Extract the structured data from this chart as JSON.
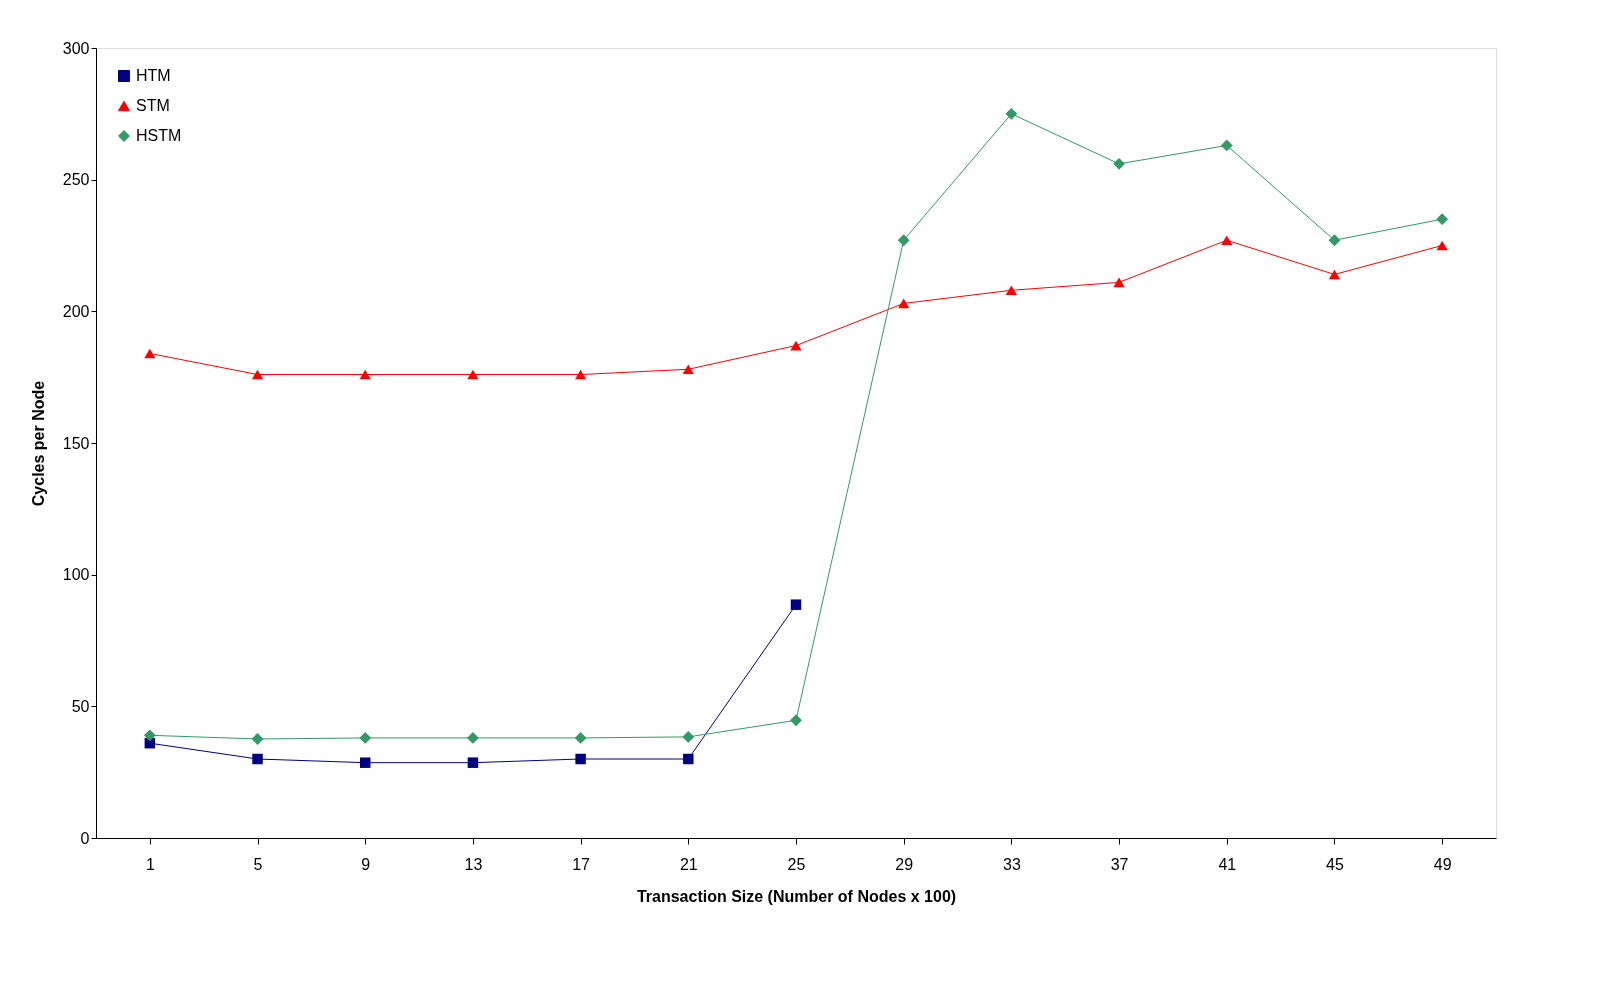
{
  "chart_data": {
    "type": "line",
    "xlabel": "Transaction Size (Number of Nodes x 100)",
    "ylabel": "Cycles per Node",
    "categories": [
      "1",
      "5",
      "9",
      "13",
      "17",
      "21",
      "25",
      "29",
      "33",
      "37",
      "41",
      "45",
      "49"
    ],
    "series": [
      {
        "name": "HTM",
        "color": "#000080",
        "marker": "square",
        "values": [
          36,
          30,
          28.6,
          28.6,
          30,
          30,
          88.6,
          null,
          null,
          null,
          null,
          null,
          null
        ]
      },
      {
        "name": "STM",
        "color": "#ff0000",
        "marker": "triangle",
        "values": [
          184,
          176,
          176,
          176,
          176,
          178,
          187,
          203,
          208,
          211,
          227,
          214,
          225
        ]
      },
      {
        "name": "HSTM",
        "color": "#339966",
        "marker": "diamond",
        "values": [
          39,
          37.6,
          38,
          38,
          38,
          38.4,
          44.7,
          227,
          275,
          256,
          263,
          227,
          235
        ]
      }
    ],
    "ylim": [
      0,
      300
    ],
    "yticks": [
      0,
      50,
      100,
      150,
      200,
      250,
      300
    ],
    "grid": false,
    "legend": "top left",
    "line_style": "solid"
  }
}
